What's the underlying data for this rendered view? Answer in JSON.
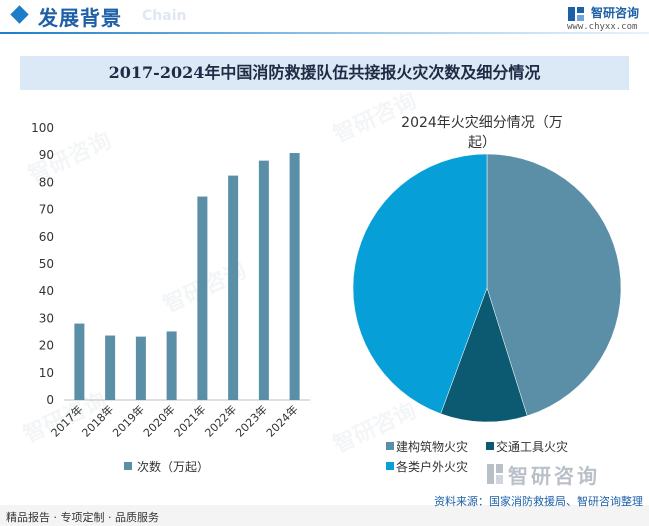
{
  "header": {
    "title": "发展背景",
    "subtitle": "Chain",
    "brand_name": "智研咨询",
    "brand_url": "www.chyxx.com"
  },
  "title": "2017-2024年中国消防救援队伍共接报火灾次数及细分情况",
  "chart_data": [
    {
      "type": "bar",
      "categories": [
        "2017年",
        "2018年",
        "2019年",
        "2020年",
        "2021年",
        "2022年",
        "2023年",
        "2024年"
      ],
      "series": [
        {
          "name": "次数（万起）",
          "values": [
            28.1,
            23.7,
            23.3,
            25.2,
            74.8,
            82.5,
            88.0,
            90.8
          ]
        }
      ],
      "ylim": [
        0,
        100
      ],
      "yticks": [
        0,
        10,
        20,
        30,
        40,
        50,
        60,
        70,
        80,
        90,
        100
      ],
      "legend": "bottom",
      "color": "#5b8fa8"
    },
    {
      "type": "pie",
      "title_line1": "2024年火灾细分情况（万",
      "title_line2": "起）",
      "slices": [
        {
          "label": "建构筑物火灾",
          "value": 41.0,
          "color": "#5b8fa8"
        },
        {
          "label": "交通工具火灾",
          "value": 9.5,
          "color": "#0b5a72"
        },
        {
          "label": "各类户外火灾",
          "value": 40.3,
          "color": "#069fd8"
        }
      ],
      "legend": "bottom"
    }
  ],
  "footer": {
    "left": "精品报告 · 专项定制 · 品质服务",
    "source": "资料来源：国家消防救援局、智研咨询整理"
  },
  "watermark": {
    "text": "智研咨询",
    "logo_text": "智研咨询"
  }
}
